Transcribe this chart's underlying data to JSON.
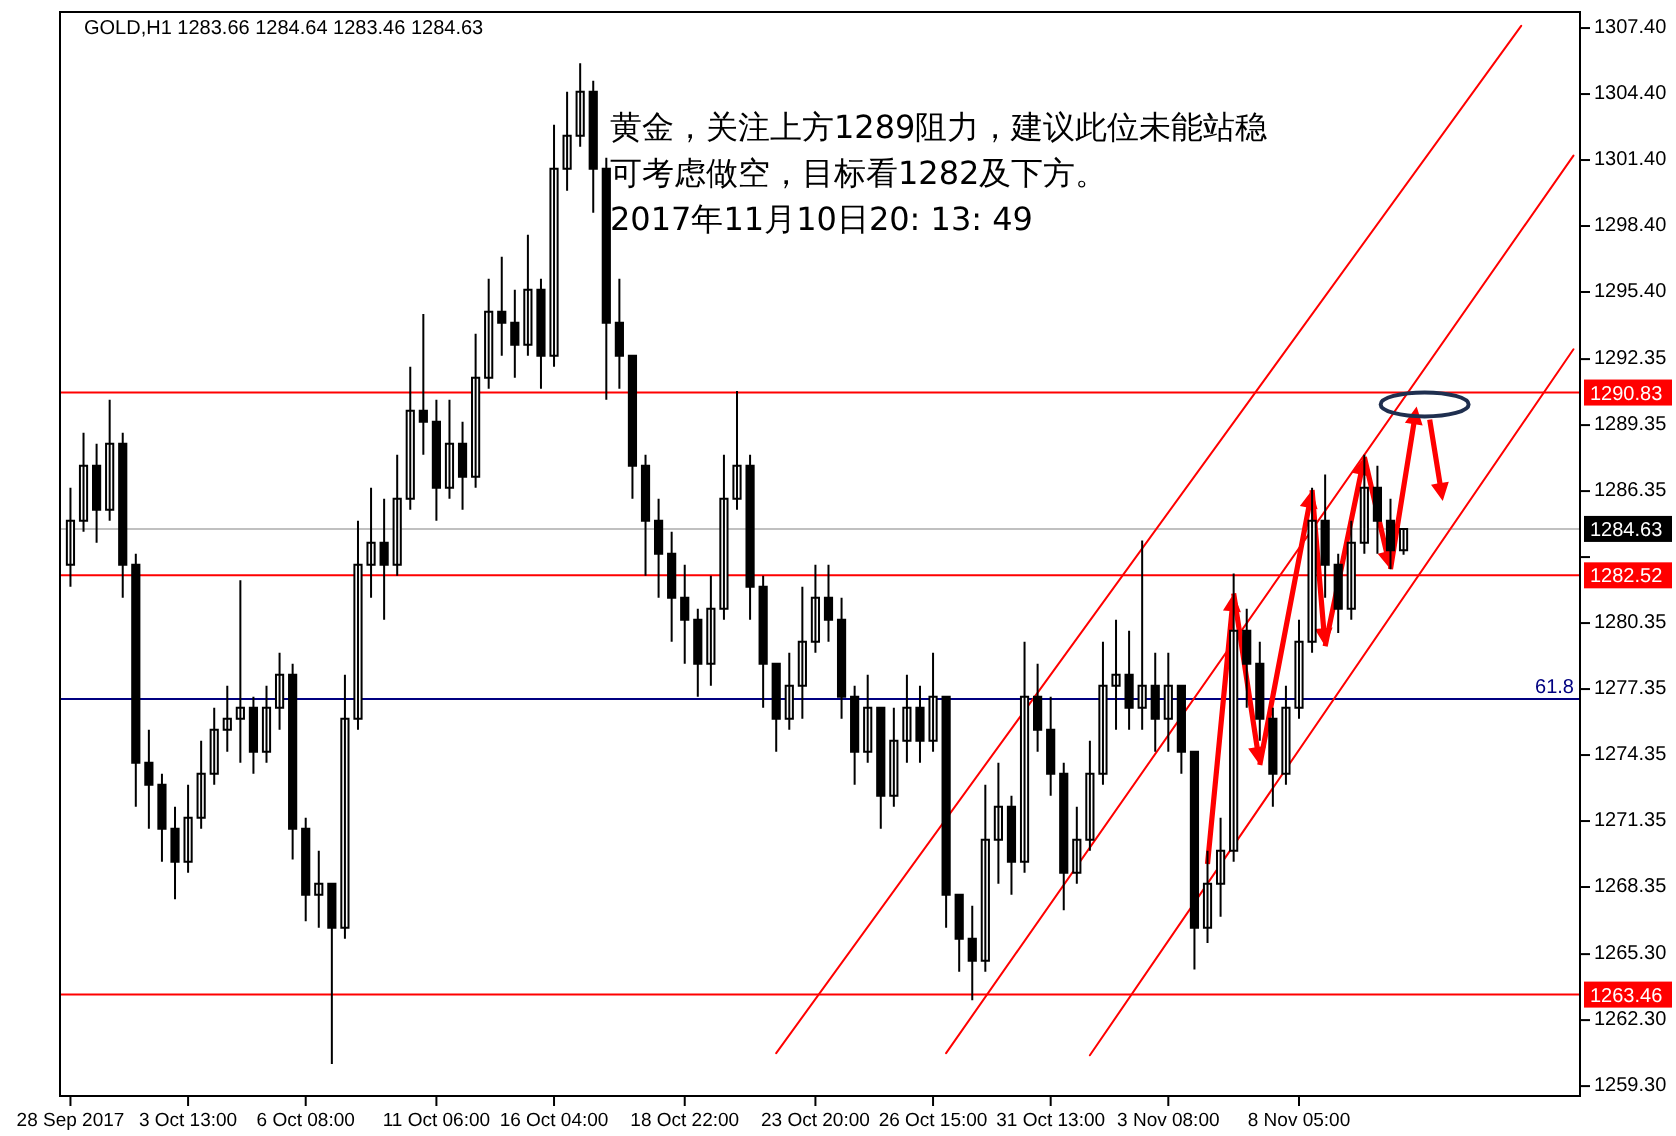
{
  "chart_data": {
    "type": "candlestick",
    "title": "GOLD,H1  1283.66 1284.64 1283.46 1284.63",
    "annotations": [
      "黄金，关注上方1289阻力，建议此位未能站稳可考虑做空，目标看1282及下方。",
      "2017年11月10日20: 13: 49",
      {
        "text": "61.8",
        "y": 1276.9
      }
    ],
    "color": "#000000",
    "categories": [
      "28 Sep 2017",
      null,
      null,
      null,
      null,
      null,
      null,
      null,
      null,
      "3 Oct 13:00",
      null,
      null,
      null,
      null,
      null,
      null,
      null,
      null,
      "6 Oct 08:00",
      null,
      null,
      null,
      null,
      null,
      null,
      null,
      null,
      null,
      "11 Oct 06:00",
      null,
      null,
      null,
      null,
      null,
      null,
      null,
      null,
      "16 Oct 04:00",
      null,
      null,
      null,
      null,
      null,
      null,
      null,
      null,
      null,
      "18 Oct 22:00",
      null,
      null,
      null,
      null,
      null,
      null,
      null,
      null,
      null,
      "23 Oct 20:00",
      null,
      null,
      null,
      null,
      null,
      null,
      null,
      null,
      "26 Oct 15:00",
      null,
      null,
      null,
      null,
      null,
      null,
      null,
      null,
      "31 Oct 13:00",
      null,
      null,
      null,
      null,
      null,
      null,
      null,
      null,
      "3 Nov 08:00",
      null,
      null,
      null,
      null,
      null,
      null,
      null,
      null,
      null,
      "8 Nov 05:00",
      null,
      null,
      null,
      null,
      null,
      null,
      null,
      null,
      null,
      null,
      null,
      null,
      null,
      null,
      null,
      null,
      null,
      null,
      null,
      null,
      null
    ],
    "ohlc": [
      [
        1283.0,
        1286.5,
        1282.0,
        1285.0
      ],
      [
        1285.0,
        1289.0,
        1284.5,
        1287.5
      ],
      [
        1287.5,
        1288.5,
        1284.0,
        1285.5
      ],
      [
        1285.5,
        1290.5,
        1285.0,
        1288.5
      ],
      [
        1288.5,
        1289.0,
        1281.5,
        1283.0
      ],
      [
        1283.0,
        1283.5,
        1272.0,
        1274.0
      ],
      [
        1274.0,
        1275.5,
        1271.0,
        1273.0
      ],
      [
        1273.0,
        1273.5,
        1269.5,
        1271.0
      ],
      [
        1271.0,
        1272.0,
        1267.8,
        1269.5
      ],
      [
        1269.5,
        1273.0,
        1269.0,
        1271.5
      ],
      [
        1271.5,
        1275.0,
        1271.0,
        1273.5
      ],
      [
        1273.5,
        1276.5,
        1273.0,
        1275.5
      ],
      [
        1275.5,
        1277.5,
        1274.5,
        1276.0
      ],
      [
        1276.0,
        1282.3,
        1274.0,
        1276.5
      ],
      [
        1276.5,
        1277.0,
        1273.5,
        1274.5
      ],
      [
        1274.5,
        1277.5,
        1274.0,
        1276.5
      ],
      [
        1276.5,
        1279.0,
        1275.5,
        1278.0
      ],
      [
        1278.0,
        1278.5,
        1269.6,
        1271.0
      ],
      [
        1271.0,
        1271.5,
        1266.8,
        1268.0
      ],
      [
        1268.0,
        1270.0,
        1266.5,
        1268.5
      ],
      [
        1268.5,
        1268.5,
        1260.3,
        1266.5
      ],
      [
        1266.5,
        1278.0,
        1266.0,
        1276.0
      ],
      [
        1276.0,
        1285.0,
        1275.5,
        1283.0
      ],
      [
        1283.0,
        1286.5,
        1281.5,
        1284.0
      ],
      [
        1284.0,
        1286.0,
        1280.5,
        1283.0
      ],
      [
        1283.0,
        1288.0,
        1282.5,
        1286.0
      ],
      [
        1286.0,
        1292.0,
        1285.5,
        1290.0
      ],
      [
        1290.0,
        1294.4,
        1288.0,
        1289.5
      ],
      [
        1289.5,
        1290.5,
        1285.0,
        1286.5
      ],
      [
        1286.5,
        1290.5,
        1286.0,
        1288.5
      ],
      [
        1288.5,
        1289.5,
        1285.5,
        1287.0
      ],
      [
        1287.0,
        1293.5,
        1286.5,
        1291.5
      ],
      [
        1291.5,
        1296.0,
        1291.0,
        1294.5
      ],
      [
        1294.5,
        1297.0,
        1292.5,
        1294.0
      ],
      [
        1294.0,
        1295.5,
        1291.5,
        1293.0
      ],
      [
        1293.0,
        1298.0,
        1292.5,
        1295.5
      ],
      [
        1295.5,
        1296.0,
        1291.0,
        1292.5
      ],
      [
        1292.5,
        1303.0,
        1292.0,
        1301.0
      ],
      [
        1301.0,
        1304.5,
        1300.0,
        1302.5
      ],
      [
        1302.5,
        1305.8,
        1302.0,
        1304.5
      ],
      [
        1304.5,
        1305.0,
        1299.0,
        1301.0
      ],
      [
        1301.0,
        1301.5,
        1290.5,
        1294.0
      ],
      [
        1294.0,
        1296.0,
        1291.0,
        1292.5
      ],
      [
        1292.5,
        1292.5,
        1286.0,
        1287.5
      ],
      [
        1287.5,
        1288.0,
        1282.5,
        1285.0
      ],
      [
        1285.0,
        1286.0,
        1281.5,
        1283.5
      ],
      [
        1283.5,
        1284.5,
        1279.5,
        1281.5
      ],
      [
        1281.5,
        1283.0,
        1278.5,
        1280.5
      ],
      [
        1280.5,
        1281.0,
        1277.0,
        1278.5
      ],
      [
        1278.5,
        1282.5,
        1277.5,
        1281.0
      ],
      [
        1281.0,
        1288.0,
        1280.5,
        1286.0
      ],
      [
        1286.0,
        1290.9,
        1285.5,
        1287.5
      ],
      [
        1287.5,
        1288.0,
        1280.5,
        1282.0
      ],
      [
        1282.0,
        1282.5,
        1276.5,
        1278.5
      ],
      [
        1278.5,
        1278.5,
        1274.5,
        1276.0
      ],
      [
        1276.0,
        1279.0,
        1275.5,
        1277.5
      ],
      [
        1277.5,
        1282.0,
        1276.0,
        1279.5
      ],
      [
        1279.5,
        1283.0,
        1279.0,
        1281.5
      ],
      [
        1281.5,
        1283.0,
        1279.5,
        1280.5
      ],
      [
        1280.5,
        1281.5,
        1276.0,
        1277.0
      ],
      [
        1277.0,
        1277.5,
        1273.0,
        1274.5
      ],
      [
        1274.5,
        1278.0,
        1274.0,
        1276.5
      ],
      [
        1276.5,
        1276.5,
        1271.0,
        1272.5
      ],
      [
        1272.5,
        1276.5,
        1272.0,
        1275.0
      ],
      [
        1275.0,
        1278.0,
        1274.0,
        1276.5
      ],
      [
        1276.5,
        1277.5,
        1274.0,
        1275.0
      ],
      [
        1275.0,
        1279.0,
        1274.5,
        1277.0
      ],
      [
        1277.0,
        1277.0,
        1266.5,
        1268.0
      ],
      [
        1268.0,
        1268.0,
        1264.5,
        1266.0
      ],
      [
        1266.0,
        1267.5,
        1263.2,
        1265.0
      ],
      [
        1265.0,
        1273.0,
        1264.5,
        1270.5
      ],
      [
        1270.5,
        1274.0,
        1268.5,
        1272.0
      ],
      [
        1272.0,
        1272.5,
        1268.0,
        1269.5
      ],
      [
        1269.5,
        1279.5,
        1269.0,
        1277.0
      ],
      [
        1277.0,
        1278.5,
        1274.5,
        1275.5
      ],
      [
        1275.5,
        1277.0,
        1272.5,
        1273.5
      ],
      [
        1273.5,
        1274.0,
        1267.3,
        1269.0
      ],
      [
        1269.0,
        1272.0,
        1268.5,
        1270.5
      ],
      [
        1270.5,
        1275.0,
        1270.0,
        1273.5
      ],
      [
        1273.5,
        1279.5,
        1273.0,
        1277.5
      ],
      [
        1277.5,
        1280.5,
        1275.5,
        1278.0
      ],
      [
        1278.0,
        1280.0,
        1275.5,
        1276.5
      ],
      [
        1276.5,
        1284.1,
        1275.5,
        1277.5
      ],
      [
        1277.5,
        1279.0,
        1274.5,
        1276.0
      ],
      [
        1276.0,
        1279.0,
        1274.5,
        1277.5
      ],
      [
        1277.5,
        1277.5,
        1273.5,
        1274.5
      ],
      [
        1274.5,
        1274.5,
        1264.6,
        1266.5
      ],
      [
        1266.5,
        1270.0,
        1265.8,
        1268.5
      ],
      [
        1268.5,
        1271.5,
        1267.0,
        1270.0
      ],
      [
        1270.0,
        1282.6,
        1269.5,
        1280.0
      ],
      [
        1280.0,
        1281.0,
        1276.5,
        1278.5
      ],
      [
        1278.5,
        1279.5,
        1275.0,
        1276.0
      ],
      [
        1276.0,
        1276.5,
        1272.0,
        1273.5
      ],
      [
        1273.5,
        1277.5,
        1273.0,
        1276.5
      ],
      [
        1276.5,
        1280.5,
        1276.0,
        1279.5
      ],
      [
        1279.5,
        1286.5,
        1279.0,
        1285.0
      ],
      [
        1285.0,
        1287.1,
        1281.5,
        1283.0
      ],
      [
        1283.0,
        1283.5,
        1279.9,
        1281.0
      ],
      [
        1281.0,
        1285.0,
        1280.5,
        1284.0
      ],
      [
        1284.0,
        1288.0,
        1283.5,
        1286.5
      ],
      [
        1286.5,
        1287.5,
        1283.5,
        1285.0
      ],
      [
        1285.0,
        1286.0,
        1282.8,
        1283.66
      ],
      [
        1283.66,
        1284.64,
        1283.46,
        1284.63
      ],
      null,
      null,
      null,
      null,
      null,
      null,
      null,
      null,
      null,
      null,
      null,
      null,
      null
    ],
    "series": [
      {
        "type": "line",
        "color": "#ff0000",
        "values": [
          null,
          null,
          null,
          null,
          null,
          null,
          null,
          null,
          null,
          null,
          null,
          null,
          null,
          null,
          null,
          null,
          null,
          null,
          null,
          null,
          null,
          null,
          null,
          null,
          null,
          null,
          null,
          null,
          null,
          null,
          null,
          null,
          null,
          null,
          null,
          null,
          null,
          null,
          null,
          null,
          null,
          null,
          null,
          null,
          null,
          null,
          null,
          null,
          null,
          null,
          null,
          null,
          null,
          null,
          1260.8,
          null,
          null,
          null,
          null,
          null,
          null,
          null,
          null,
          null,
          null,
          null,
          null,
          null,
          null,
          null,
          null,
          null,
          null,
          null,
          null,
          null,
          null,
          null,
          null,
          null,
          null,
          null,
          null,
          null,
          null,
          null,
          null,
          null,
          null,
          null,
          null,
          null,
          null,
          null,
          null,
          null,
          null,
          null,
          null,
          null,
          null,
          null,
          null,
          null,
          null,
          null,
          null,
          null,
          null,
          null,
          null,
          1307.5,
          null,
          null,
          null,
          null
        ]
      },
      {
        "type": "line",
        "color": "#ff0000",
        "values": [
          null,
          null,
          null,
          null,
          null,
          null,
          null,
          null,
          null,
          null,
          null,
          null,
          null,
          null,
          null,
          null,
          null,
          null,
          null,
          null,
          null,
          null,
          null,
          null,
          null,
          null,
          null,
          null,
          null,
          null,
          null,
          null,
          null,
          null,
          null,
          null,
          null,
          null,
          null,
          null,
          null,
          null,
          null,
          null,
          null,
          null,
          null,
          null,
          null,
          null,
          null,
          null,
          null,
          null,
          null,
          null,
          null,
          null,
          null,
          null,
          null,
          null,
          null,
          null,
          null,
          null,
          null,
          1260.8,
          null,
          null,
          null,
          null,
          null,
          null,
          null,
          null,
          null,
          null,
          null,
          null,
          null,
          null,
          null,
          null,
          null,
          null,
          null,
          null,
          null,
          null,
          null,
          null,
          null,
          null,
          null,
          null,
          null,
          null,
          null,
          null,
          null,
          null,
          null,
          null,
          null,
          null,
          null,
          null,
          null,
          null,
          null,
          null,
          null,
          null,
          null,
          1301.6
        ]
      },
      {
        "type": "line",
        "color": "#ff0000",
        "values": [
          null,
          null,
          null,
          null,
          null,
          null,
          null,
          null,
          null,
          null,
          null,
          null,
          null,
          null,
          null,
          null,
          null,
          null,
          null,
          null,
          null,
          null,
          null,
          null,
          null,
          null,
          null,
          null,
          null,
          null,
          null,
          null,
          null,
          null,
          null,
          null,
          null,
          null,
          null,
          null,
          null,
          null,
          null,
          null,
          null,
          null,
          null,
          null,
          null,
          null,
          null,
          null,
          null,
          null,
          null,
          null,
          null,
          null,
          null,
          null,
          null,
          null,
          null,
          null,
          null,
          null,
          null,
          null,
          null,
          null,
          null,
          null,
          null,
          null,
          null,
          null,
          null,
          null,
          1260.7,
          null,
          null,
          null,
          null,
          null,
          null,
          null,
          null,
          null,
          null,
          null,
          null,
          null,
          null,
          null,
          null,
          null,
          null,
          null,
          null,
          null,
          null,
          null,
          null,
          null,
          null,
          null,
          null,
          null,
          null,
          null,
          null,
          null,
          null,
          null,
          null,
          1292.8
        ]
      }
    ],
    "ref_lines": [
      {
        "axis": "y",
        "value": 1290.83,
        "label": "1290.83",
        "color": "#ff0000"
      },
      {
        "axis": "y",
        "value": 1284.63,
        "label": "1284.63",
        "color": "#c0c0c0"
      },
      {
        "axis": "y",
        "value": 1282.52,
        "label": "1282.52",
        "color": "#ff0000"
      },
      {
        "axis": "y",
        "value": 1276.9,
        "color": "#000080"
      },
      {
        "axis": "y",
        "value": 1263.46,
        "label": "1263.46",
        "color": "#ff0000"
      }
    ],
    "ylim": [
      1258.85,
      1308.13
    ],
    "yticks": [
      {
        "value": 1307.4,
        "label": "1307.40"
      },
      {
        "value": 1304.4,
        "label": "1304.40"
      },
      {
        "value": 1301.4,
        "label": "1301.40"
      },
      {
        "value": 1298.4,
        "label": "1298.40"
      },
      {
        "value": 1295.4,
        "label": "1295.40"
      },
      {
        "value": 1292.35,
        "label": "1292.35"
      },
      {
        "value": 1289.35,
        "label": "1289.35"
      },
      {
        "value": 1286.35,
        "label": "1286.35"
      },
      {
        "value": 1283.35,
        "label": null
      },
      {
        "value": 1280.35,
        "label": "1280.35"
      },
      {
        "value": 1277.35,
        "label": "1277.35"
      },
      {
        "value": 1274.35,
        "label": "1274.35"
      },
      {
        "value": 1271.35,
        "label": "1271.35"
      },
      {
        "value": 1268.35,
        "label": "1268.35"
      },
      {
        "value": 1265.3,
        "label": "1265.30"
      },
      {
        "value": 1262.3,
        "label": "1262.30"
      },
      {
        "value": 1259.3,
        "label": "1259.30"
      }
    ]
  }
}
